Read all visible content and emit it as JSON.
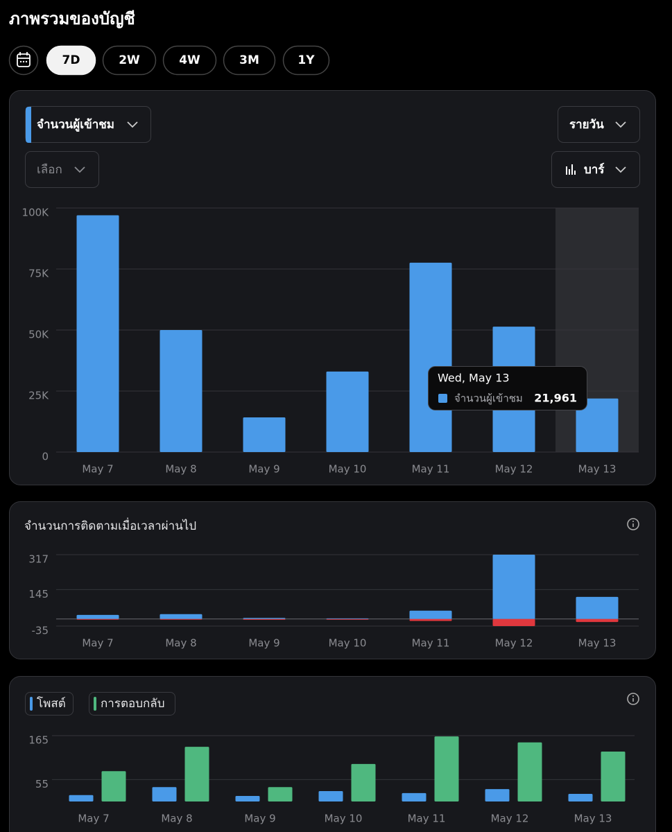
{
  "header": {
    "title": "ภาพรวมของบัญชี"
  },
  "ranges": {
    "options": [
      "7D",
      "2W",
      "4W",
      "3M",
      "1Y"
    ],
    "selected": 0
  },
  "controls": {
    "metric": "จำนวนผู้เข้าชม",
    "interval": "รายวัน",
    "compare": "เลือก",
    "chart_style": "บาร์"
  },
  "chart_data": [
    {
      "type": "bar",
      "categories": [
        "May 7",
        "May 8",
        "May 9",
        "May 10",
        "May 11",
        "May 12",
        "May 13"
      ],
      "series": [
        {
          "name": "จำนวนผู้เข้าชม",
          "color": "#4a9ae8",
          "values": [
            97000,
            50000,
            14200,
            33000,
            77600,
            51400,
            21961
          ],
          "value_labels": [
            null,
            null,
            null,
            null,
            null,
            null,
            "21,961"
          ]
        }
      ],
      "ylim": [
        0,
        100000
      ],
      "yticks": [
        0,
        {
          "value": 25000,
          "label": "25K"
        },
        {
          "value": 50000,
          "label": "50K"
        },
        {
          "value": 75000,
          "label": "75K"
        },
        {
          "value": 100000,
          "label": "100K"
        }
      ],
      "grid": true,
      "highlight_index": 6,
      "tooltip": {
        "title": "Wed, May 13"
      }
    },
    {
      "type": "bar",
      "stacked": true,
      "title": "จำนวนการติดตามเมื่อเวลาผ่านไป",
      "categories": [
        "May 7",
        "May 8",
        "May 9",
        "May 10",
        "May 11",
        "May 12",
        "May 13"
      ],
      "series": [
        {
          "color": "#4a9ae8",
          "values": [
            20,
            24,
            5,
            3,
            41,
            317,
            109
          ]
        },
        {
          "color": "#e0383e",
          "values": [
            -2,
            -1,
            -4,
            -1,
            -10,
            -35,
            -15
          ]
        }
      ],
      "ylim": [
        -35,
        317
      ],
      "yticks": [
        -35,
        145,
        317
      ],
      "grid": true
    },
    {
      "type": "bar",
      "categories": [
        "May 7",
        "May 8",
        "May 9",
        "May 10",
        "May 11",
        "May 12",
        "May 13"
      ],
      "series": [
        {
          "name": "โพสต์",
          "color": "#4a9ae8",
          "values": [
            16,
            36,
            14,
            26,
            21,
            31,
            19
          ]
        },
        {
          "name": "การตอบกลับ",
          "color": "#4fb87f",
          "values": [
            76,
            137,
            36,
            94,
            163,
            148,
            125
          ]
        }
      ],
      "ylim": [
        0,
        165
      ],
      "yticks": [
        55,
        165
      ],
      "grid": true
    }
  ]
}
